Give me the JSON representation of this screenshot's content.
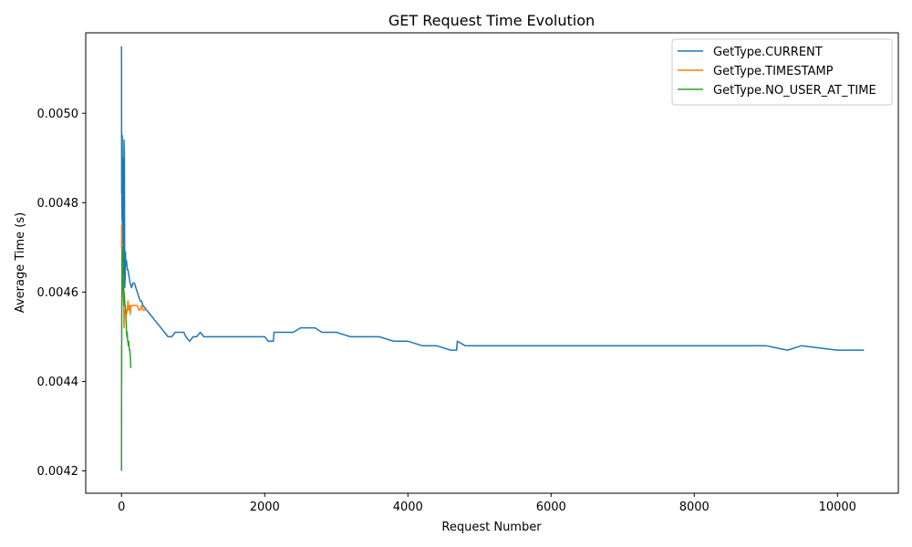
{
  "chart_data": {
    "type": "line",
    "title": "GET Request Time Evolution",
    "xlabel": "Request Number",
    "ylabel": "Average Time (s)",
    "xlim": [
      -500,
      10850
    ],
    "ylim": [
      0.00415,
      0.00518
    ],
    "x_ticks": [
      0,
      2000,
      4000,
      6000,
      8000,
      10000
    ],
    "x_tick_labels": [
      "0",
      "2000",
      "4000",
      "6000",
      "8000",
      "10000"
    ],
    "y_ticks": [
      0.0042,
      0.0044,
      0.0046,
      0.0048,
      0.005
    ],
    "y_tick_labels": [
      "0.0042",
      "0.0044",
      "0.0046",
      "0.0048",
      "0.0050"
    ],
    "grid": false,
    "legend_position": "top-right",
    "series": [
      {
        "name": "GetType.CURRENT",
        "color": "#1f77b4",
        "x": [
          0,
          2,
          3,
          5,
          8,
          10,
          12,
          15,
          20,
          25,
          30,
          35,
          40,
          45,
          50,
          55,
          60,
          70,
          80,
          90,
          100,
          120,
          140,
          160,
          180,
          200,
          220,
          240,
          260,
          280,
          300,
          350,
          400,
          450,
          500,
          550,
          600,
          650,
          700,
          750,
          800,
          830,
          870,
          900,
          950,
          1000,
          1050,
          1100,
          1150,
          1200,
          1300,
          1400,
          1500,
          1600,
          1700,
          1800,
          1900,
          2000,
          2050,
          2100,
          2120,
          2130,
          2200,
          2250,
          2300,
          2400,
          2500,
          2600,
          2700,
          2800,
          2900,
          3000,
          3200,
          3400,
          3600,
          3800,
          4000,
          4200,
          4400,
          4600,
          4680,
          4690,
          4800,
          5000,
          5500,
          6000,
          6500,
          7000,
          7500,
          7700,
          8000,
          8500,
          9000,
          9300,
          9500,
          10000,
          10370
        ],
        "y": [
          0.00515,
          0.00482,
          0.00488,
          0.0048,
          0.00476,
          0.00495,
          0.00471,
          0.0049,
          0.00478,
          0.00465,
          0.00462,
          0.00494,
          0.0049,
          0.00461,
          0.00463,
          0.00469,
          0.00466,
          0.00467,
          0.00465,
          0.00465,
          0.00464,
          0.00462,
          0.00461,
          0.00462,
          0.00462,
          0.00461,
          0.0046,
          0.00459,
          0.00458,
          0.00458,
          0.00457,
          0.00456,
          0.00455,
          0.00454,
          0.00453,
          0.00452,
          0.00451,
          0.0045,
          0.0045,
          0.00451,
          0.00451,
          0.00451,
          0.00451,
          0.0045,
          0.00449,
          0.0045,
          0.0045,
          0.00451,
          0.0045,
          0.0045,
          0.0045,
          0.0045,
          0.0045,
          0.0045,
          0.0045,
          0.0045,
          0.0045,
          0.0045,
          0.00449,
          0.00449,
          0.00449,
          0.00451,
          0.00451,
          0.00451,
          0.00451,
          0.00451,
          0.00452,
          0.00452,
          0.00452,
          0.00451,
          0.00451,
          0.00451,
          0.0045,
          0.0045,
          0.0045,
          0.00449,
          0.00449,
          0.00448,
          0.00448,
          0.00447,
          0.00447,
          0.00449,
          0.00448,
          0.00448,
          0.00448,
          0.00448,
          0.00448,
          0.00448,
          0.00448,
          0.00448,
          0.00448,
          0.00448,
          0.00448,
          0.00447,
          0.00448,
          0.00447,
          0.00447
        ]
      },
      {
        "name": "GetType.TIMESTAMP",
        "color": "#ff7f0e",
        "x": [
          0,
          2,
          4,
          6,
          8,
          10,
          12,
          15,
          20,
          25,
          30,
          35,
          40,
          50,
          60,
          70,
          80,
          90,
          100,
          110,
          120,
          130,
          140,
          160,
          180,
          200,
          220,
          240,
          260,
          280,
          300,
          330,
          360
        ],
        "y": [
          0.0047,
          0.00475,
          0.0047,
          0.00466,
          0.00465,
          0.00468,
          0.00462,
          0.00463,
          0.00461,
          0.0046,
          0.00457,
          0.00452,
          0.00456,
          0.00456,
          0.00456,
          0.00455,
          0.00456,
          0.00458,
          0.00456,
          0.00457,
          0.00455,
          0.00457,
          0.00457,
          0.00457,
          0.00457,
          0.00457,
          0.00457,
          0.00456,
          0.00456,
          0.00457,
          0.00456,
          0.00456,
          0.00456
        ]
      },
      {
        "name": "GetType.NO_USER_AT_TIME",
        "color": "#2ca02c",
        "x": [
          0,
          1,
          2,
          3,
          4,
          5,
          6,
          8,
          10,
          12,
          14,
          16,
          18,
          20,
          22,
          25,
          28,
          30,
          33,
          36,
          40,
          44,
          48,
          52,
          56,
          60,
          65,
          70,
          75,
          80,
          85,
          90,
          95,
          100,
          105,
          110,
          115,
          120,
          125,
          130
        ],
        "y": [
          0.0042,
          0.00448,
          0.0044,
          0.00455,
          0.0046,
          0.00458,
          0.00468,
          0.00464,
          0.0047,
          0.00467,
          0.00465,
          0.00464,
          0.00461,
          0.00463,
          0.0046,
          0.00462,
          0.00464,
          0.00461,
          0.00457,
          0.0046,
          0.00459,
          0.00458,
          0.00457,
          0.00457,
          0.00456,
          0.00455,
          0.00453,
          0.00451,
          0.0045,
          0.00451,
          0.00449,
          0.00449,
          0.00448,
          0.00449,
          0.00448,
          0.00447,
          0.00447,
          0.00446,
          0.00445,
          0.00443
        ]
      }
    ]
  }
}
